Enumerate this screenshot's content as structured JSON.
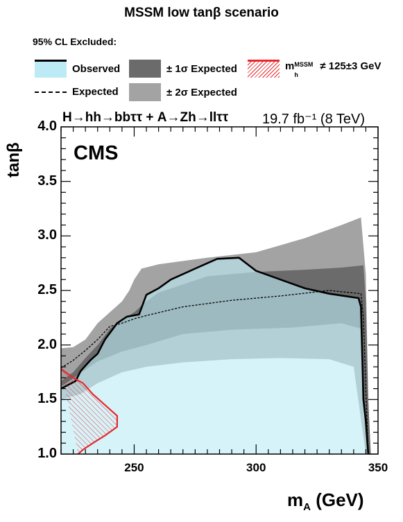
{
  "title": "MSSM low tanβ scenario",
  "legend": {
    "header": "95% CL Excluded:",
    "observed": "Observed",
    "expected": "Expected",
    "one_sigma": "± 1σ Expected",
    "two_sigma": "± 2σ Expected",
    "mh_prefix": "m",
    "mh_sub": "h",
    "mh_sup": "MSSM",
    "mh_suffix": "≠ 125±3 GeV"
  },
  "process_label": "H→hh→bbττ + A→Zh→llττ",
  "lumi_label": "19.7 fb⁻¹ (8 TeV)",
  "experiment_label": "CMS",
  "colors": {
    "observed": "#bdebf5",
    "one_sigma": "#6b6b6b",
    "two_sigma": "#a3a3a3",
    "mh_hatch": "#e8272b"
  },
  "chart_data": {
    "type": "area",
    "xlabel": "m_A (GeV)",
    "ylabel": "tanβ",
    "xlim": [
      220,
      350
    ],
    "ylim": [
      1.0,
      4.0
    ],
    "x_ticks": [
      250,
      300,
      350
    ],
    "y_ticks": [
      1.0,
      1.5,
      2.0,
      2.5,
      3.0,
      3.5,
      4.0
    ],
    "grid": false,
    "legend_position": "top",
    "two_sigma_band": {
      "upper": [
        [
          220,
          1.97
        ],
        [
          225,
          1.98
        ],
        [
          230,
          2.05
        ],
        [
          235,
          2.2
        ],
        [
          240,
          2.3
        ],
        [
          245,
          2.4
        ],
        [
          248,
          2.5
        ],
        [
          250,
          2.6
        ],
        [
          253,
          2.7
        ],
        [
          260,
          2.74
        ],
        [
          280,
          2.8
        ],
        [
          300,
          2.85
        ],
        [
          320,
          2.98
        ],
        [
          335,
          3.1
        ],
        [
          343,
          3.17
        ],
        [
          345,
          2.65
        ],
        [
          346,
          1.5
        ],
        [
          347,
          1.0
        ]
      ],
      "lower": [
        [
          220,
          1.0
        ],
        [
          345,
          1.0
        ],
        [
          340,
          1.8
        ],
        [
          330,
          1.87
        ],
        [
          310,
          1.88
        ],
        [
          290,
          1.87
        ],
        [
          270,
          1.84
        ],
        [
          255,
          1.8
        ],
        [
          245,
          1.75
        ],
        [
          235,
          1.65
        ],
        [
          228,
          1.55
        ],
        [
          220,
          1.5
        ]
      ]
    },
    "one_sigma_band": {
      "upper": [
        [
          220,
          1.67
        ],
        [
          225,
          1.75
        ],
        [
          230,
          1.88
        ],
        [
          235,
          2.0
        ],
        [
          240,
          2.15
        ],
        [
          245,
          2.23
        ],
        [
          250,
          2.3
        ],
        [
          255,
          2.4
        ],
        [
          260,
          2.48
        ],
        [
          280,
          2.63
        ],
        [
          300,
          2.67
        ],
        [
          320,
          2.69
        ],
        [
          335,
          2.71
        ],
        [
          344,
          2.73
        ],
        [
          345,
          2.4
        ],
        [
          346,
          1.5
        ],
        [
          347,
          1.0
        ]
      ],
      "lower": [
        [
          220,
          1.0
        ],
        [
          345,
          1.0
        ],
        [
          343,
          2.15
        ],
        [
          335,
          2.2
        ],
        [
          315,
          2.16
        ],
        [
          290,
          2.14
        ],
        [
          270,
          2.1
        ],
        [
          255,
          2.0
        ],
        [
          245,
          1.94
        ],
        [
          235,
          1.85
        ],
        [
          228,
          1.74
        ],
        [
          220,
          1.62
        ]
      ]
    },
    "expected": [
      [
        220,
        1.79
      ],
      [
        225,
        1.86
      ],
      [
        230,
        1.95
      ],
      [
        235,
        2.05
      ],
      [
        240,
        2.17
      ],
      [
        245,
        2.2
      ],
      [
        250,
        2.24
      ],
      [
        255,
        2.27
      ],
      [
        270,
        2.35
      ],
      [
        290,
        2.41
      ],
      [
        310,
        2.45
      ],
      [
        330,
        2.5
      ],
      [
        343,
        2.47
      ],
      [
        344,
        2.25
      ],
      [
        345,
        1.6
      ],
      [
        346,
        1.0
      ]
    ],
    "observed": [
      [
        220,
        1.6
      ],
      [
        226,
        1.67
      ],
      [
        228,
        1.76
      ],
      [
        232,
        1.86
      ],
      [
        235,
        1.92
      ],
      [
        238,
        2.05
      ],
      [
        243,
        2.2
      ],
      [
        247,
        2.26
      ],
      [
        252,
        2.28
      ],
      [
        255,
        2.46
      ],
      [
        260,
        2.52
      ],
      [
        265,
        2.6
      ],
      [
        275,
        2.7
      ],
      [
        284,
        2.79
      ],
      [
        293,
        2.8
      ],
      [
        300,
        2.68
      ],
      [
        310,
        2.6
      ],
      [
        320,
        2.52
      ],
      [
        330,
        2.47
      ],
      [
        342,
        2.43
      ],
      [
        343,
        2.35
      ],
      [
        344,
        1.5
      ],
      [
        345,
        1.3
      ],
      [
        346,
        1.0
      ],
      [
        220,
        1.0
      ]
    ],
    "mh_exclusion": [
      [
        220,
        1.78
      ],
      [
        225,
        1.7
      ],
      [
        229,
        1.65
      ],
      [
        233,
        1.55
      ],
      [
        238,
        1.45
      ],
      [
        243,
        1.35
      ],
      [
        243,
        1.25
      ],
      [
        238,
        1.17
      ],
      [
        233,
        1.1
      ],
      [
        229,
        1.04
      ],
      [
        227,
        1.0
      ]
    ]
  }
}
